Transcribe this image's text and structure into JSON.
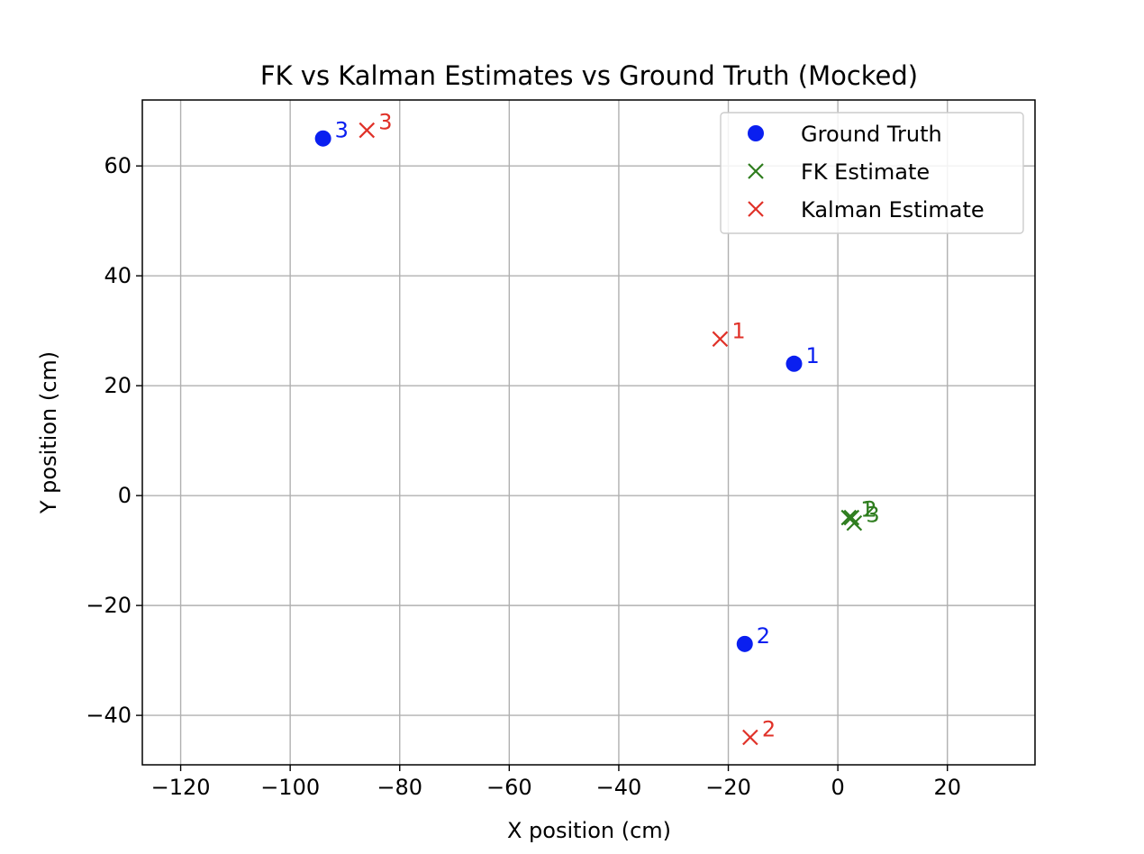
{
  "chart_data": {
    "type": "scatter",
    "title": "FK vs Kalman Estimates vs Ground Truth (Mocked)",
    "xlabel": "X position (cm)",
    "ylabel": "Y position (cm)",
    "xlim": [
      -127,
      36
    ],
    "ylim": [
      -49,
      72
    ],
    "x_ticks": [
      {
        "value": -120,
        "label": "−120"
      },
      {
        "value": -100,
        "label": "−100"
      },
      {
        "value": -80,
        "label": "−80"
      },
      {
        "value": -60,
        "label": "−60"
      },
      {
        "value": -40,
        "label": "−40"
      },
      {
        "value": -20,
        "label": "−20"
      },
      {
        "value": 0,
        "label": "0"
      },
      {
        "value": 20,
        "label": "20"
      }
    ],
    "y_ticks": [
      {
        "value": -40,
        "label": "−40"
      },
      {
        "value": -20,
        "label": "−20"
      },
      {
        "value": 0,
        "label": "0"
      },
      {
        "value": 20,
        "label": "20"
      },
      {
        "value": 40,
        "label": "40"
      },
      {
        "value": 60,
        "label": "60"
      }
    ],
    "grid": true,
    "legend_position": "top-right",
    "series": [
      {
        "name": "Ground Truth",
        "marker": "circle",
        "color": "#0a1ff0",
        "points": [
          {
            "x": -8,
            "y": 24,
            "label": "1"
          },
          {
            "x": -17,
            "y": -27,
            "label": "2"
          },
          {
            "x": -94,
            "y": 65,
            "label": "3"
          }
        ]
      },
      {
        "name": "FK Estimate",
        "marker": "x",
        "color": "#2e7d1e",
        "points": [
          {
            "x": 2,
            "y": -4,
            "label": "1"
          },
          {
            "x": 2.5,
            "y": -4,
            "label": "2"
          },
          {
            "x": 3,
            "y": -5,
            "label": "3"
          }
        ]
      },
      {
        "name": "Kalman Estimate",
        "marker": "x",
        "color": "#e03128",
        "points": [
          {
            "x": -21.5,
            "y": 28.5,
            "label": "1"
          },
          {
            "x": -16,
            "y": -44,
            "label": "2"
          },
          {
            "x": -86,
            "y": 66.5,
            "label": "3"
          }
        ]
      }
    ]
  }
}
